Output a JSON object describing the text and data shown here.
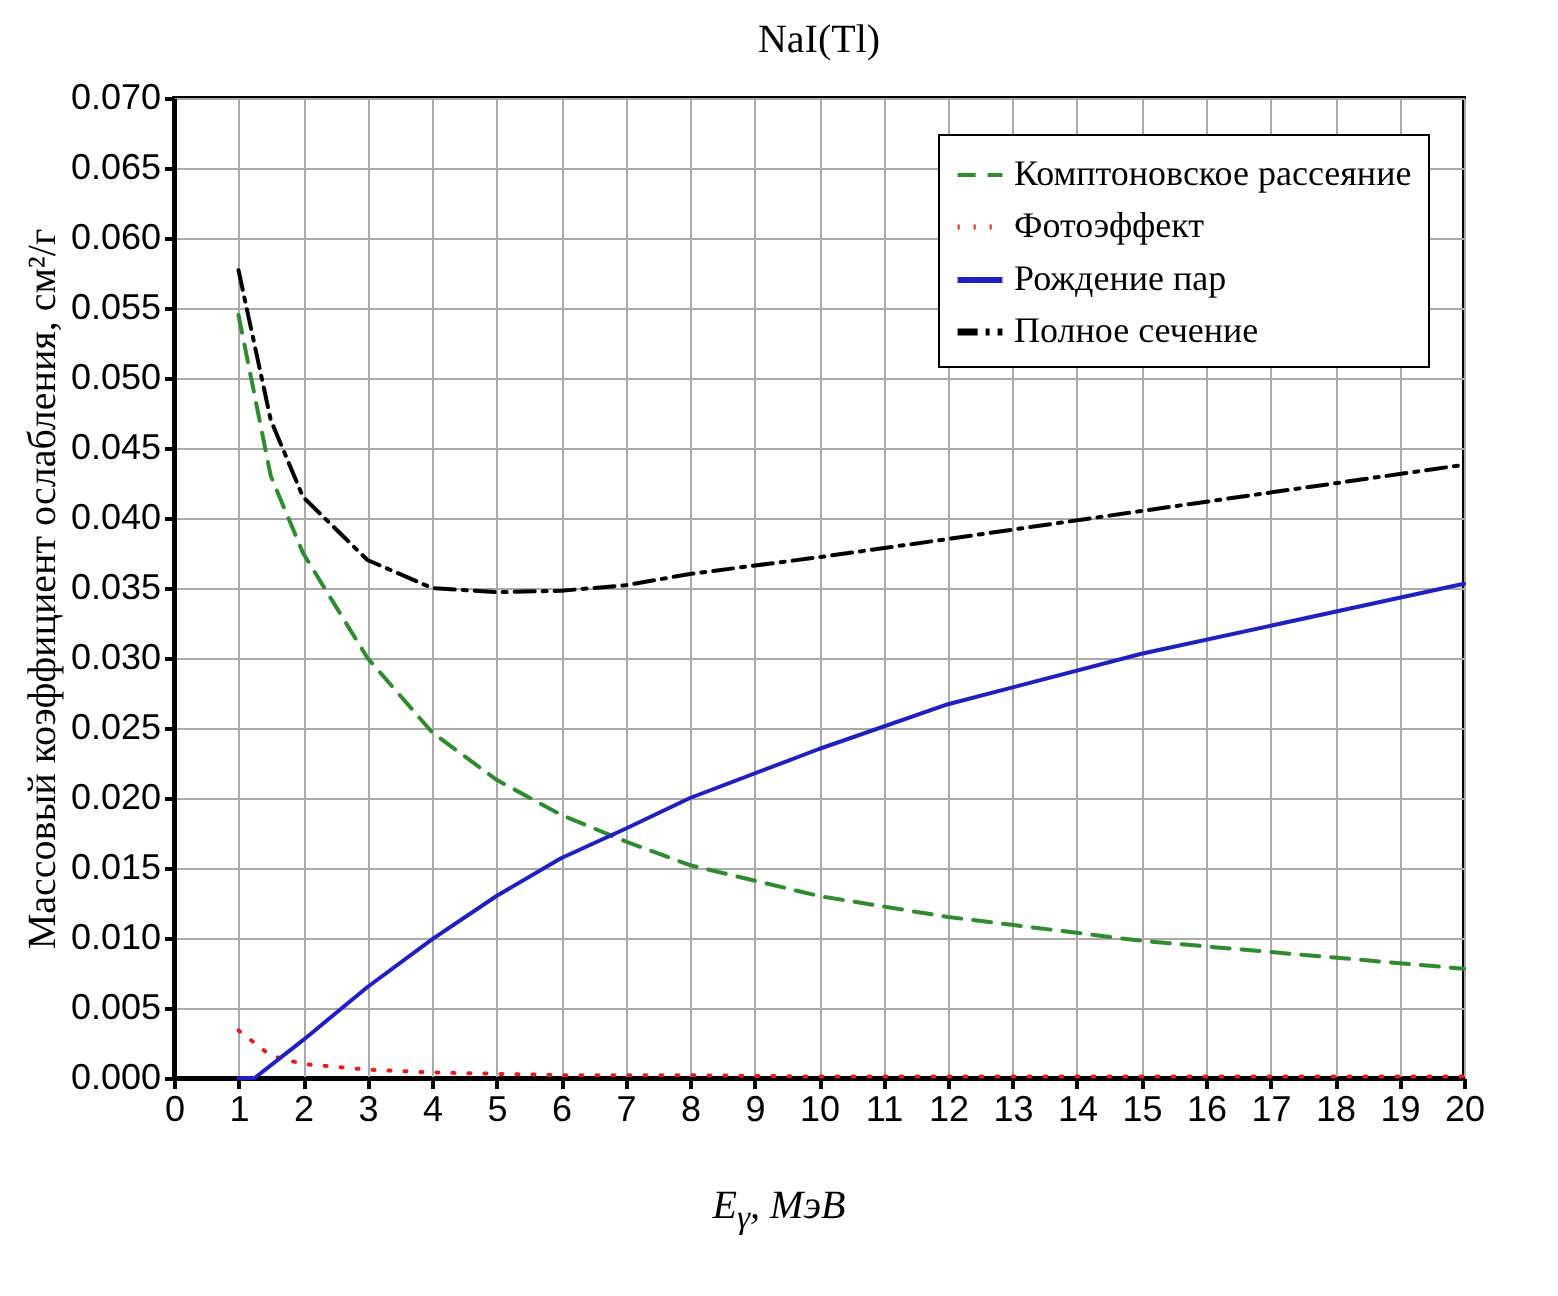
{
  "chart_data": {
    "type": "line",
    "title": "NaI(Tl)",
    "xlabel": "E$_{γ}$, МэВ",
    "ylabel": "Массовый коэффициент ослабления, см²/г",
    "xlim": [
      0,
      20
    ],
    "xticks": [
      0,
      1,
      2,
      3,
      4,
      5,
      6,
      7,
      8,
      9,
      10,
      11,
      12,
      13,
      14,
      15,
      16,
      17,
      18,
      19,
      20
    ],
    "ylim": [
      0,
      0.07
    ],
    "yticks": [
      {
        "value": 0,
        "label": "0.000"
      },
      {
        "value": 0.005,
        "label": "0.005"
      },
      {
        "value": 0.01,
        "label": "0.010"
      },
      {
        "value": 0.015,
        "label": "0.015"
      },
      {
        "value": 0.02,
        "label": "0.020"
      },
      {
        "value": 0.025,
        "label": "0.025"
      },
      {
        "value": 0.03,
        "label": "0.030"
      },
      {
        "value": 0.035,
        "label": "0.035"
      },
      {
        "value": 0.04,
        "label": "0.040"
      },
      {
        "value": 0.045,
        "label": "0.045"
      },
      {
        "value": 0.05,
        "label": "0.050"
      },
      {
        "value": 0.055,
        "label": "0.055"
      },
      {
        "value": 0.06,
        "label": "0.060"
      },
      {
        "value": 0.065,
        "label": "0.065"
      },
      {
        "value": 0.07,
        "label": "0.070"
      }
    ],
    "grid": true,
    "legend": "top right",
    "marker": "none",
    "series": [
      {
        "name": "Комптоновское рассеяние",
        "color": "#2e8b2e",
        "line_style": "dashed",
        "x": [
          1,
          1.5,
          2,
          3,
          4,
          5,
          6,
          7,
          8,
          10,
          12,
          15,
          20
        ],
        "values": [
          0.0545,
          0.043,
          0.0375,
          0.03,
          0.0247,
          0.0213,
          0.0188,
          0.0169,
          0.0152,
          0.013,
          0.0115,
          0.0098,
          0.0078
        ]
      },
      {
        "name": "Фотоэффект",
        "color": "#e02020",
        "line_style": "dotted",
        "x": [
          1,
          1.5,
          2,
          3,
          4,
          5,
          6,
          8,
          10,
          15,
          20
        ],
        "values": [
          0.0034,
          0.0016,
          0.001,
          0.0006,
          0.0004,
          0.0003,
          0.0002,
          0.0002,
          0.0001,
          0.0001,
          0.0001
        ]
      },
      {
        "name": "Рождение пар",
        "color": "#2020c0",
        "line_style": "solid",
        "x": [
          1,
          1.25,
          2,
          3,
          4,
          5,
          6,
          7,
          8,
          10,
          12,
          15,
          20
        ],
        "values": [
          0,
          0,
          0.0027,
          0.0065,
          0.0099,
          0.013,
          0.0157,
          0.0178,
          0.02,
          0.0235,
          0.0267,
          0.0303,
          0.0353
        ]
      },
      {
        "name": "Полное сечение",
        "color": "#000000",
        "line_style": "dashdot",
        "x": [
          1,
          1.5,
          2,
          3,
          4,
          5,
          6,
          7,
          8,
          10,
          12,
          15,
          20
        ],
        "values": [
          0.0577,
          0.047,
          0.0415,
          0.037,
          0.035,
          0.0347,
          0.0348,
          0.0352,
          0.036,
          0.0372,
          0.0385,
          0.0405,
          0.0438
        ]
      }
    ]
  }
}
